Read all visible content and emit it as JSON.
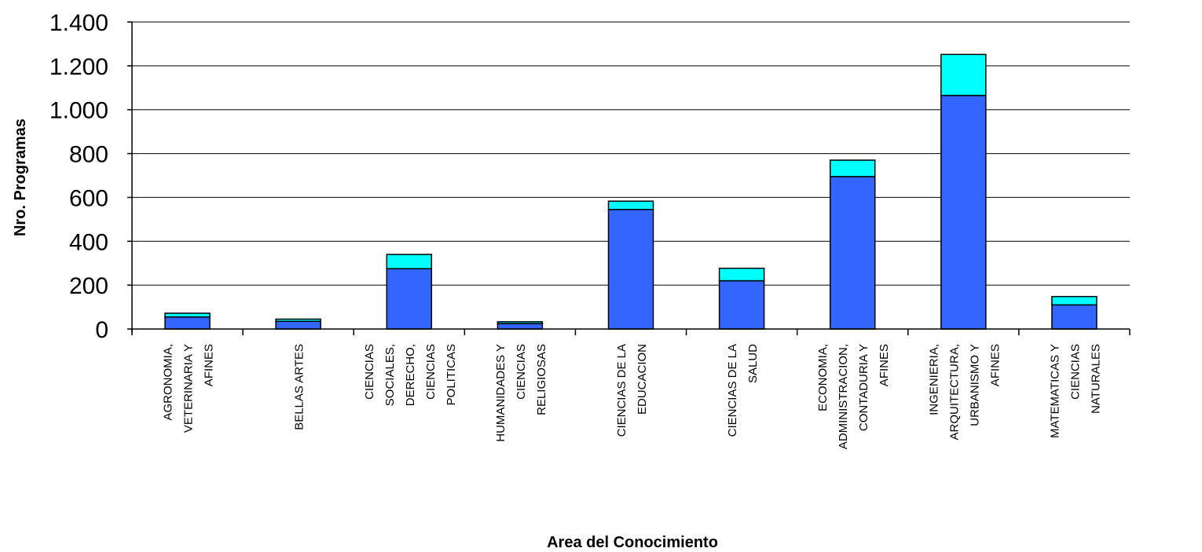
{
  "chart_data": {
    "type": "bar",
    "stacked": true,
    "title": "",
    "xlabel": "Area del Conocimiento",
    "ylabel": "Nro. Programas",
    "ylim": [
      0,
      1400
    ],
    "yticks": [
      0,
      200,
      400,
      600,
      800,
      1000,
      1200,
      1400
    ],
    "ytick_labels": [
      "0",
      "200",
      "400",
      "600",
      "800",
      "1.000",
      "1.200",
      "1.400"
    ],
    "grid": true,
    "legend": "none",
    "categories": [
      [
        "AGRONOMIA,",
        "VETERINARIA Y",
        "AFINES"
      ],
      [
        "BELLAS ARTES"
      ],
      [
        "CIENCIAS",
        "SOCIALES,",
        "DERECHO,",
        "CIENCIAS",
        "POLITICAS"
      ],
      [
        "HUMANIDADES Y",
        "CIENCIAS",
        "RELIGIOSAS"
      ],
      [
        "CIENCIAS DE LA",
        "EDUCACION"
      ],
      [
        "CIENCIAS DE LA",
        "SALUD"
      ],
      [
        "ECONOMIA,",
        "ADMINISTRACION,",
        "CONTADURIA Y",
        "AFINES"
      ],
      [
        "INGENIERIA,",
        "ARQUITECTURA,",
        "URBANISMO Y",
        "AFINES"
      ],
      [
        "MATEMATICAS Y",
        "CIENCIAS",
        "NATURALES"
      ]
    ],
    "series": [
      {
        "values": [
          55,
          35,
          275,
          25,
          545,
          220,
          695,
          1065,
          110
        ],
        "color": "#3366FF"
      },
      {
        "values": [
          17,
          10,
          65,
          8,
          38,
          57,
          75,
          187,
          38
        ],
        "color": "#00FFFF"
      }
    ]
  }
}
